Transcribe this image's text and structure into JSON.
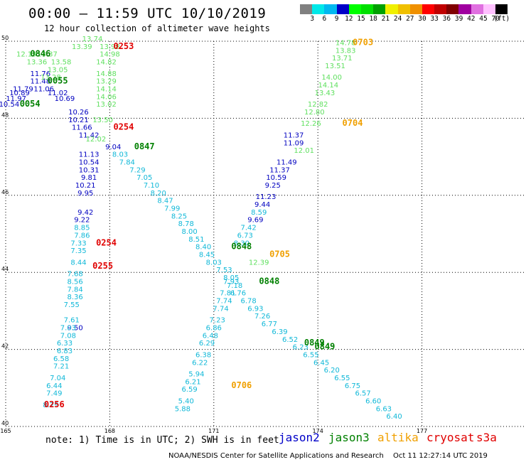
{
  "header": {
    "title": "00:00 – 11:59 UTC 10/10/2019",
    "subtitle": "12 hour collection of altimeter wave heights"
  },
  "legend": {
    "colors": [
      "#808080",
      "#00e8e8",
      "#00b8f0",
      "#0000c8",
      "#00ff00",
      "#00e000",
      "#00a000",
      "#f0f000",
      "#f0c000",
      "#f09000",
      "#ff0000",
      "#c00000",
      "#800000",
      "#a000a0",
      "#e070e0",
      "#ffc0ff",
      "#000000"
    ],
    "labels": [
      "3",
      "6",
      "9",
      "12",
      "15",
      "18",
      "21",
      "24",
      "27",
      "30",
      "33",
      "36",
      "39",
      "42",
      "45",
      "70",
      "(ft)"
    ]
  },
  "axes": {
    "y_ticks": [
      "50",
      "48",
      "46",
      "44",
      "42",
      "40"
    ],
    "x_ticks": [
      "165",
      "168",
      "171",
      "174",
      "177"
    ]
  },
  "footer": {
    "note": "note: 1) Time is in UTC; 2) SWH is in feet",
    "satellites": [
      {
        "name": "jason2",
        "color": "#0000c8"
      },
      {
        "name": "jason3",
        "color": "#008000"
      },
      {
        "name": "altika",
        "color": "#f0a000"
      },
      {
        "name": "cryosat",
        "color": "#e00000"
      },
      {
        "name": "s3a",
        "color": "#e00000"
      }
    ],
    "credit": "NOAA/NESDIS Center for Satellite Applications and Research",
    "timestamp": "Oct 11 12:27:14 UTC 2019"
  },
  "chart_data": {
    "type": "scatter",
    "title": "00:00 – 11:59 UTC 10/10/2019",
    "subtitle": "12 hour collection of altimeter wave heights",
    "xlim": [
      165,
      180
    ],
    "ylim": [
      40,
      50
    ],
    "units": "ft",
    "time_labels": [
      {
        "text": "0253",
        "lon": 168.4,
        "lat": 49.8,
        "color": "#e00000"
      },
      {
        "text": "0846",
        "lon": 166.0,
        "lat": 49.6,
        "color": "#008000"
      },
      {
        "text": "0055",
        "lon": 166.5,
        "lat": 48.9,
        "color": "#008000"
      },
      {
        "text": "0054",
        "lon": 165.7,
        "lat": 48.3,
        "color": "#008000"
      },
      {
        "text": "0254",
        "lon": 168.4,
        "lat": 47.7,
        "color": "#e00000"
      },
      {
        "text": "0847",
        "lon": 169.0,
        "lat": 47.2,
        "color": "#008000"
      },
      {
        "text": "0254",
        "lon": 167.9,
        "lat": 44.7,
        "color": "#e00000"
      },
      {
        "text": "0255",
        "lon": 167.8,
        "lat": 44.1,
        "color": "#e00000"
      },
      {
        "text": "0256",
        "lon": 166.4,
        "lat": 40.5,
        "color": "#e00000"
      },
      {
        "text": "0703",
        "lon": 175.3,
        "lat": 49.9,
        "color": "#f0a000"
      },
      {
        "text": "0704",
        "lon": 175.0,
        "lat": 47.8,
        "color": "#f0a000"
      },
      {
        "text": "0705",
        "lon": 172.9,
        "lat": 44.4,
        "color": "#f0a000"
      },
      {
        "text": "0706",
        "lon": 171.8,
        "lat": 41.0,
        "color": "#f0a000"
      },
      {
        "text": "0848",
        "lon": 171.8,
        "lat": 44.6,
        "color": "#008000"
      },
      {
        "text": "0848",
        "lon": 172.6,
        "lat": 43.7,
        "color": "#008000"
      },
      {
        "text": "0849",
        "lon": 173.9,
        "lat": 42.1,
        "color": "#008000"
      },
      {
        "text": "0849",
        "lon": 174.2,
        "lat": 42.0,
        "color": "#008000"
      }
    ],
    "series": [
      {
        "name": "jason2",
        "points": [
          {
            "lon": 166.0,
            "lat": 49.1,
            "v": 11.76
          },
          {
            "lon": 166.0,
            "lat": 48.9,
            "v": 11.48
          },
          {
            "lon": 166.1,
            "lat": 48.7,
            "v": 11.06
          },
          {
            "lon": 165.5,
            "lat": 48.7,
            "v": 11.79
          },
          {
            "lon": 165.4,
            "lat": 48.6,
            "v": 10.89
          },
          {
            "lon": 166.5,
            "lat": 48.6,
            "v": 11.02
          },
          {
            "lon": 165.3,
            "lat": 48.45,
            "v": 11.97
          },
          {
            "lon": 166.7,
            "lat": 48.45,
            "v": 10.69
          },
          {
            "lon": 165.1,
            "lat": 48.3,
            "v": 10.54
          },
          {
            "lon": 167.1,
            "lat": 48.1,
            "v": 10.26
          },
          {
            "lon": 167.1,
            "lat": 47.9,
            "v": 10.21
          },
          {
            "lon": 167.2,
            "lat": 47.7,
            "v": 11.66
          },
          {
            "lon": 167.4,
            "lat": 47.5,
            "v": 11.42
          },
          {
            "lon": 168.1,
            "lat": 47.2,
            "v": 9.04
          },
          {
            "lon": 167.4,
            "lat": 47.0,
            "v": 11.13
          },
          {
            "lon": 167.4,
            "lat": 46.8,
            "v": 10.54
          },
          {
            "lon": 167.4,
            "lat": 46.6,
            "v": 10.31
          },
          {
            "lon": 167.4,
            "lat": 46.4,
            "v": 9.81
          },
          {
            "lon": 167.3,
            "lat": 46.2,
            "v": 10.21
          },
          {
            "lon": 167.3,
            "lat": 46.0,
            "v": 9.95
          },
          {
            "lon": 167.3,
            "lat": 45.5,
            "v": 9.42
          },
          {
            "lon": 167.2,
            "lat": 45.3,
            "v": 9.22
          },
          {
            "lon": 167.0,
            "lat": 42.5,
            "v": 9.5
          },
          {
            "lon": 173.3,
            "lat": 47.5,
            "v": 11.37
          },
          {
            "lon": 173.3,
            "lat": 47.3,
            "v": 11.09
          },
          {
            "lon": 173.1,
            "lat": 46.8,
            "v": 11.49
          },
          {
            "lon": 172.9,
            "lat": 46.6,
            "v": 11.37
          },
          {
            "lon": 172.8,
            "lat": 46.4,
            "v": 10.59
          },
          {
            "lon": 172.7,
            "lat": 46.2,
            "v": 9.25
          },
          {
            "lon": 172.5,
            "lat": 45.9,
            "v": 11.23
          },
          {
            "lon": 172.4,
            "lat": 45.7,
            "v": 9.44
          },
          {
            "lon": 172.3,
            "lat": 45.5,
            "v": 8.59
          },
          {
            "lon": 172.2,
            "lat": 45.3,
            "v": 9.69
          }
        ]
      },
      {
        "name": "jason3",
        "points": [
          {
            "lon": 167.5,
            "lat": 50.0,
            "v": 13.74
          },
          {
            "lon": 167.2,
            "lat": 49.8,
            "v": 13.39
          },
          {
            "lon": 166.2,
            "lat": 49.6,
            "v": 13.37
          },
          {
            "lon": 165.6,
            "lat": 49.6,
            "v": 12.19
          },
          {
            "lon": 165.9,
            "lat": 49.4,
            "v": 13.36
          },
          {
            "lon": 166.6,
            "lat": 49.4,
            "v": 13.58
          },
          {
            "lon": 166.5,
            "lat": 49.2,
            "v": 13.05
          },
          {
            "lon": 166.3,
            "lat": 49.0,
            "v": 13.28
          },
          {
            "lon": 168.0,
            "lat": 49.8,
            "v": 13.98
          },
          {
            "lon": 168.0,
            "lat": 49.6,
            "v": 14.98
          },
          {
            "lon": 167.9,
            "lat": 49.4,
            "v": 14.82
          },
          {
            "lon": 167.9,
            "lat": 49.1,
            "v": 14.88
          },
          {
            "lon": 167.9,
            "lat": 48.9,
            "v": 13.29
          },
          {
            "lon": 167.9,
            "lat": 48.7,
            "v": 14.14
          },
          {
            "lon": 167.9,
            "lat": 48.5,
            "v": 14.06
          },
          {
            "lon": 167.9,
            "lat": 48.3,
            "v": 13.02
          },
          {
            "lon": 167.8,
            "lat": 47.9,
            "v": 13.5
          },
          {
            "lon": 167.6,
            "lat": 47.4,
            "v": 12.02
          },
          {
            "lon": 174.8,
            "lat": 49.9,
            "v": 14.78
          },
          {
            "lon": 174.8,
            "lat": 49.7,
            "v": 13.83
          },
          {
            "lon": 174.7,
            "lat": 49.5,
            "v": 13.71
          },
          {
            "lon": 174.5,
            "lat": 49.3,
            "v": 13.51
          },
          {
            "lon": 174.4,
            "lat": 49.0,
            "v": 14.0
          },
          {
            "lon": 174.3,
            "lat": 48.8,
            "v": 14.14
          },
          {
            "lon": 174.2,
            "lat": 48.6,
            "v": 13.43
          },
          {
            "lon": 174.0,
            "lat": 48.3,
            "v": 12.82
          },
          {
            "lon": 173.9,
            "lat": 48.1,
            "v": 12.8
          },
          {
            "lon": 173.8,
            "lat": 47.8,
            "v": 12.26
          },
          {
            "lon": 173.6,
            "lat": 47.1,
            "v": 12.01
          },
          {
            "lon": 172.3,
            "lat": 44.2,
            "v": 12.39
          }
        ]
      },
      {
        "name": "swh_under_12",
        "points": [
          {
            "lon": 168.3,
            "lat": 47.0,
            "v": 8.03
          },
          {
            "lon": 168.5,
            "lat": 46.8,
            "v": 7.84
          },
          {
            "lon": 168.8,
            "lat": 46.6,
            "v": 7.29
          },
          {
            "lon": 169.0,
            "lat": 46.4,
            "v": 7.05
          },
          {
            "lon": 169.2,
            "lat": 46.2,
            "v": 7.1
          },
          {
            "lon": 169.4,
            "lat": 46.0,
            "v": 8.2
          },
          {
            "lon": 169.6,
            "lat": 45.8,
            "v": 8.47
          },
          {
            "lon": 169.8,
            "lat": 45.6,
            "v": 7.99
          },
          {
            "lon": 170.0,
            "lat": 45.4,
            "v": 8.25
          },
          {
            "lon": 170.2,
            "lat": 45.2,
            "v": 8.78
          },
          {
            "lon": 170.3,
            "lat": 45.0,
            "v": 8.0
          },
          {
            "lon": 170.5,
            "lat": 44.8,
            "v": 8.51
          },
          {
            "lon": 170.7,
            "lat": 44.6,
            "v": 8.4
          },
          {
            "lon": 170.8,
            "lat": 44.4,
            "v": 8.45
          },
          {
            "lon": 171.0,
            "lat": 44.2,
            "v": 8.03
          },
          {
            "lon": 171.3,
            "lat": 44.0,
            "v": 7.53
          },
          {
            "lon": 171.5,
            "lat": 43.8,
            "v": 8.05
          },
          {
            "lon": 171.6,
            "lat": 43.6,
            "v": 7.18
          },
          {
            "lon": 171.7,
            "lat": 43.4,
            "v": 6.76
          },
          {
            "lon": 172.0,
            "lat": 43.2,
            "v": 6.78
          },
          {
            "lon": 172.2,
            "lat": 43.0,
            "v": 6.93
          },
          {
            "lon": 172.4,
            "lat": 42.8,
            "v": 7.26
          },
          {
            "lon": 172.6,
            "lat": 42.6,
            "v": 6.77
          },
          {
            "lon": 172.9,
            "lat": 42.4,
            "v": 6.39
          },
          {
            "lon": 173.2,
            "lat": 42.2,
            "v": 6.52
          },
          {
            "lon": 173.5,
            "lat": 42.0,
            "v": 6.23
          },
          {
            "lon": 173.8,
            "lat": 41.8,
            "v": 6.55
          },
          {
            "lon": 174.1,
            "lat": 41.6,
            "v": 6.45
          },
          {
            "lon": 174.4,
            "lat": 41.4,
            "v": 6.2
          },
          {
            "lon": 174.7,
            "lat": 41.2,
            "v": 6.55
          },
          {
            "lon": 175.0,
            "lat": 41.0,
            "v": 6.75
          },
          {
            "lon": 175.3,
            "lat": 40.8,
            "v": 6.57
          },
          {
            "lon": 175.6,
            "lat": 40.6,
            "v": 6.6
          },
          {
            "lon": 175.9,
            "lat": 40.4,
            "v": 6.63
          },
          {
            "lon": 176.2,
            "lat": 40.2,
            "v": 6.4
          },
          {
            "lon": 167.2,
            "lat": 45.1,
            "v": 8.85
          },
          {
            "lon": 167.2,
            "lat": 44.9,
            "v": 7.86
          },
          {
            "lon": 167.1,
            "lat": 44.7,
            "v": 7.33
          },
          {
            "lon": 167.1,
            "lat": 44.5,
            "v": 7.35
          },
          {
            "lon": 167.1,
            "lat": 44.2,
            "v": 8.44
          },
          {
            "lon": 167.0,
            "lat": 43.9,
            "v": 7.68
          },
          {
            "lon": 167.0,
            "lat": 43.7,
            "v": 8.56
          },
          {
            "lon": 167.0,
            "lat": 43.5,
            "v": 7.84
          },
          {
            "lon": 167.0,
            "lat": 43.3,
            "v": 8.36
          },
          {
            "lon": 166.9,
            "lat": 43.1,
            "v": 7.55
          },
          {
            "lon": 166.9,
            "lat": 42.7,
            "v": 7.61
          },
          {
            "lon": 166.8,
            "lat": 42.5,
            "v": 7.03
          },
          {
            "lon": 166.8,
            "lat": 42.3,
            "v": 7.08
          },
          {
            "lon": 166.7,
            "lat": 42.1,
            "v": 6.33
          },
          {
            "lon": 166.7,
            "lat": 41.9,
            "v": 6.83
          },
          {
            "lon": 166.6,
            "lat": 41.7,
            "v": 6.58
          },
          {
            "lon": 166.6,
            "lat": 41.5,
            "v": 7.21
          },
          {
            "lon": 166.5,
            "lat": 41.2,
            "v": 7.04
          },
          {
            "lon": 166.4,
            "lat": 41.0,
            "v": 6.44
          },
          {
            "lon": 166.4,
            "lat": 40.8,
            "v": 7.49
          },
          {
            "lon": 166.3,
            "lat": 40.5,
            "v": 8.29
          },
          {
            "lon": 172.0,
            "lat": 45.1,
            "v": 7.42
          },
          {
            "lon": 171.9,
            "lat": 44.9,
            "v": 6.73
          },
          {
            "lon": 171.8,
            "lat": 44.7,
            "v": 8.3
          },
          {
            "lon": 171.5,
            "lat": 43.7,
            "v": 7.93
          },
          {
            "lon": 171.4,
            "lat": 43.4,
            "v": 7.81
          },
          {
            "lon": 171.3,
            "lat": 43.2,
            "v": 7.74
          },
          {
            "lon": 171.2,
            "lat": 43.0,
            "v": 7.74
          },
          {
            "lon": 171.1,
            "lat": 42.7,
            "v": 7.23
          },
          {
            "lon": 171.0,
            "lat": 42.5,
            "v": 6.86
          },
          {
            "lon": 170.9,
            "lat": 42.3,
            "v": 6.48
          },
          {
            "lon": 170.8,
            "lat": 42.1,
            "v": 6.29
          },
          {
            "lon": 170.7,
            "lat": 41.8,
            "v": 6.38
          },
          {
            "lon": 170.6,
            "lat": 41.6,
            "v": 6.22
          },
          {
            "lon": 170.5,
            "lat": 41.3,
            "v": 5.94
          },
          {
            "lon": 170.4,
            "lat": 41.1,
            "v": 6.21
          },
          {
            "lon": 170.3,
            "lat": 40.9,
            "v": 6.59
          },
          {
            "lon": 170.2,
            "lat": 40.6,
            "v": 5.4
          },
          {
            "lon": 170.1,
            "lat": 40.4,
            "v": 5.88
          }
        ]
      }
    ]
  }
}
